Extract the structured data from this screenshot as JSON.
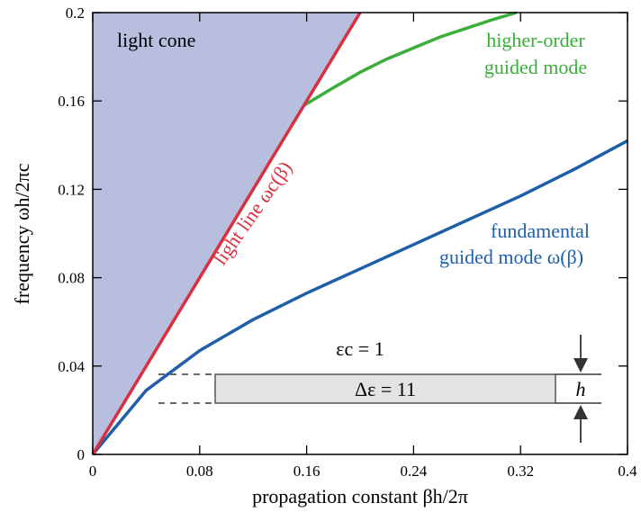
{
  "chart_data": {
    "type": "line",
    "xlabel": "propagation constant βh/2π",
    "ylabel": "frequency ωh/2πc",
    "xlim": [
      0,
      0.4
    ],
    "ylim": [
      0,
      0.2
    ],
    "x_ticks": [
      0,
      0.08,
      0.16,
      0.24,
      0.32,
      0.4
    ],
    "y_ticks": [
      0,
      0.04,
      0.08,
      0.12,
      0.16,
      0.2
    ],
    "x_tick_labels": [
      "0",
      "0.08",
      "0.16",
      "0.24",
      "0.32",
      "0.4"
    ],
    "y_tick_labels": [
      "0",
      "0.04",
      "0.08",
      "0.12",
      "0.16",
      "0.2"
    ],
    "grid": false,
    "legend": "none",
    "series": [
      {
        "name": "light line ωc(β)",
        "color": "#d9303f",
        "x": [
          0,
          0.2
        ],
        "y": [
          0,
          0.2
        ]
      },
      {
        "name": "fundamental guided mode ω(β)",
        "color": "#1f5faa",
        "x": [
          0,
          0.04,
          0.08,
          0.12,
          0.16,
          0.2,
          0.24,
          0.28,
          0.32,
          0.36,
          0.4
        ],
        "y": [
          0,
          0.029,
          0.047,
          0.061,
          0.073,
          0.084,
          0.095,
          0.106,
          0.117,
          0.129,
          0.142
        ]
      },
      {
        "name": "higher-order guided mode",
        "color": "#3aae3a",
        "x": [
          0.158,
          0.18,
          0.2,
          0.22,
          0.24,
          0.26,
          0.28,
          0.3,
          0.317
        ],
        "y": [
          0.158,
          0.166,
          0.173,
          0.179,
          0.184,
          0.189,
          0.193,
          0.197,
          0.2
        ]
      }
    ],
    "light_cone": {
      "label": "light cone",
      "fill": "#b7bede"
    },
    "annotations": {
      "light_line": {
        "text": "light line ωc(β)",
        "color": "#d9303f"
      },
      "higher_order": {
        "line1": "higher-order",
        "line2": "guided mode",
        "color": "#3aae3a"
      },
      "fundamental": {
        "line1": "fundamental",
        "line2": "guided mode ω(β)",
        "color": "#1f5faa"
      },
      "slab": {
        "cladding_label": "εc = 1",
        "core_label": "Δε = 11",
        "thickness_label": "h",
        "fill": "#e3e3e3"
      }
    }
  }
}
